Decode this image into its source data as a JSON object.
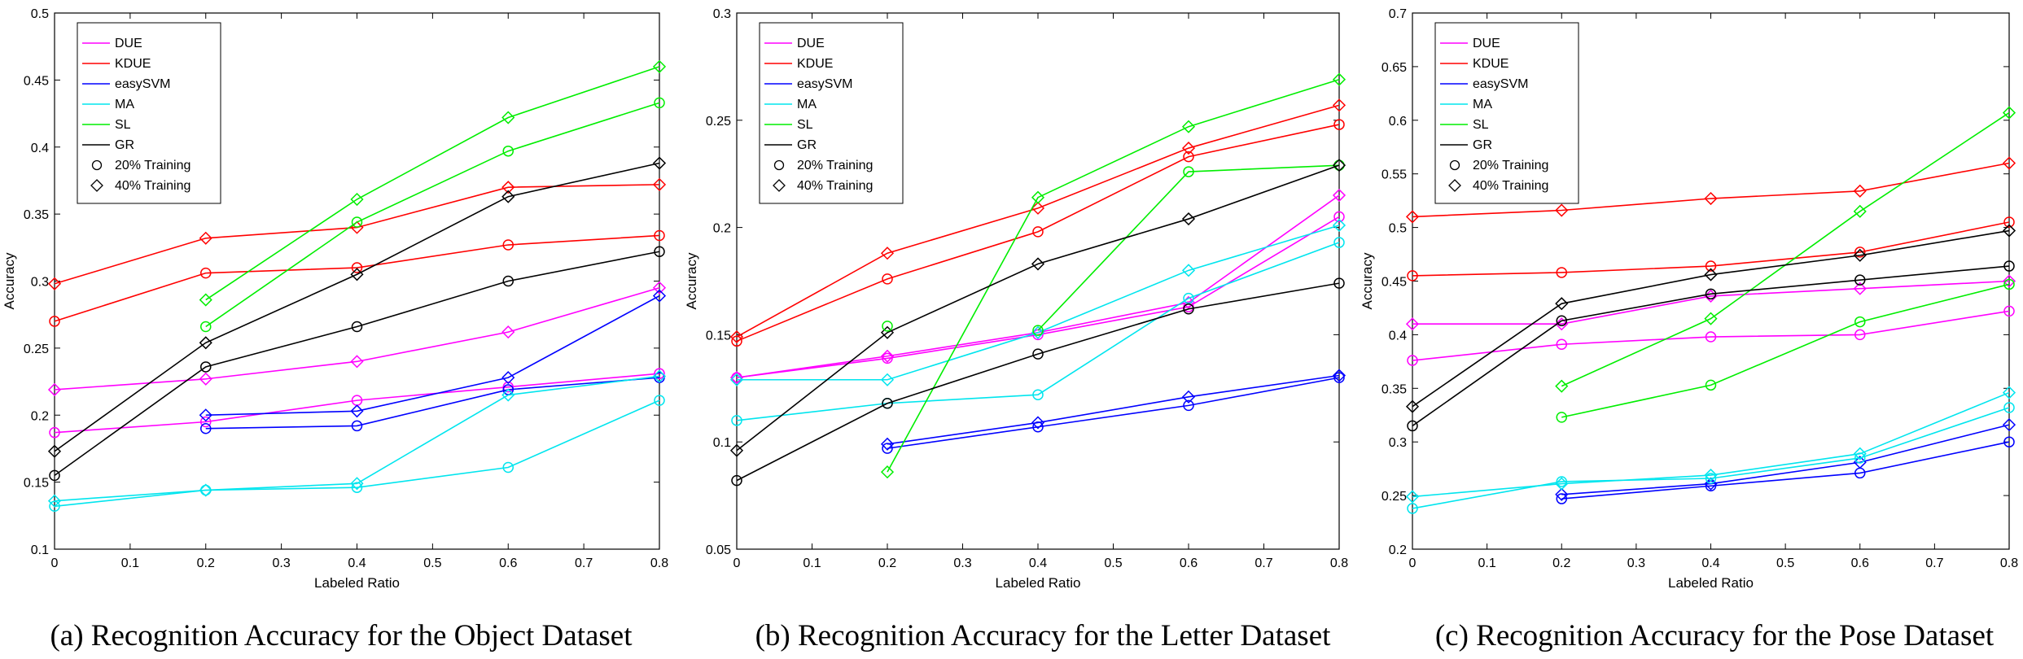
{
  "chart_data": [
    {
      "type": "line",
      "caption": "(a) Recognition Accuracy for the Object Dataset",
      "xlabel": "Labeled Ratio",
      "ylabel": "Accuracy",
      "xlim": [
        0,
        0.8
      ],
      "ylim": [
        0.1,
        0.5
      ],
      "xticks": [
        "0",
        "0.1",
        "0.2",
        "0.3",
        "0.4",
        "0.5",
        "0.6",
        "0.7",
        "0.8"
      ],
      "yticks": [
        "0.1",
        "0.15",
        "0.2",
        "0.25",
        "0.3",
        "0.35",
        "0.4",
        "0.45",
        "0.5"
      ],
      "legend_position": "top-left",
      "legend": [
        "DUE",
        "KDUE",
        "easySVM",
        "MA",
        "SL",
        "GR",
        "20% Training",
        "40% Training"
      ],
      "series": [
        {
          "name": "DUE",
          "training": "20% Training",
          "color": "#ff00ff",
          "marker": "circle",
          "x": [
            0,
            0.2,
            0.4,
            0.6,
            0.8
          ],
          "y": [
            0.187,
            0.195,
            0.211,
            0.221,
            0.231
          ]
        },
        {
          "name": "DUE",
          "training": "40% Training",
          "color": "#ff00ff",
          "marker": "diamond",
          "x": [
            0,
            0.2,
            0.4,
            0.6,
            0.8
          ],
          "y": [
            0.219,
            0.227,
            0.24,
            0.262,
            0.295
          ]
        },
        {
          "name": "KDUE",
          "training": "20% Training",
          "color": "#ff0000",
          "marker": "circle",
          "x": [
            0,
            0.2,
            0.4,
            0.6,
            0.8
          ],
          "y": [
            0.27,
            0.306,
            0.31,
            0.327,
            0.334
          ]
        },
        {
          "name": "KDUE",
          "training": "40% Training",
          "color": "#ff0000",
          "marker": "diamond",
          "x": [
            0,
            0.2,
            0.4,
            0.6,
            0.8
          ],
          "y": [
            0.298,
            0.332,
            0.34,
            0.37,
            0.372
          ]
        },
        {
          "name": "easySVM",
          "training": "20% Training",
          "color": "#0000ff",
          "marker": "circle",
          "x": [
            0.2,
            0.4,
            0.6,
            0.8
          ],
          "y": [
            0.19,
            0.192,
            0.219,
            0.228
          ]
        },
        {
          "name": "easySVM",
          "training": "40% Training",
          "color": "#0000ff",
          "marker": "diamond",
          "x": [
            0.2,
            0.4,
            0.6,
            0.8
          ],
          "y": [
            0.2,
            0.203,
            0.228,
            0.289
          ]
        },
        {
          "name": "MA",
          "training": "20% Training",
          "color": "#00e5ee",
          "marker": "circle",
          "x": [
            0,
            0.2,
            0.4,
            0.6,
            0.8
          ],
          "y": [
            0.132,
            0.144,
            0.146,
            0.161,
            0.211
          ]
        },
        {
          "name": "MA",
          "training": "40% Training",
          "color": "#00e5ee",
          "marker": "diamond",
          "x": [
            0,
            0.2,
            0.4,
            0.6,
            0.8
          ],
          "y": [
            0.136,
            0.144,
            0.149,
            0.215,
            0.229
          ]
        },
        {
          "name": "SL",
          "training": "20% Training",
          "color": "#00ee00",
          "marker": "circle",
          "x": [
            0.2,
            0.4,
            0.6,
            0.8
          ],
          "y": [
            0.266,
            0.344,
            0.397,
            0.433
          ]
        },
        {
          "name": "SL",
          "training": "40% Training",
          "color": "#00ee00",
          "marker": "diamond",
          "x": [
            0.2,
            0.4,
            0.6,
            0.8
          ],
          "y": [
            0.286,
            0.361,
            0.422,
            0.46
          ]
        },
        {
          "name": "GR",
          "training": "20% Training",
          "color": "#000000",
          "marker": "circle",
          "x": [
            0,
            0.2,
            0.4,
            0.6,
            0.8
          ],
          "y": [
            0.155,
            0.236,
            0.266,
            0.3,
            0.322
          ]
        },
        {
          "name": "GR",
          "training": "40% Training",
          "color": "#000000",
          "marker": "diamond",
          "x": [
            0,
            0.2,
            0.4,
            0.6,
            0.8
          ],
          "y": [
            0.173,
            0.254,
            0.305,
            0.363,
            0.388
          ]
        }
      ]
    },
    {
      "type": "line",
      "caption": "(b) Recognition Accuracy for the Letter Dataset",
      "xlabel": "Labeled Ratio",
      "ylabel": "Accuracy",
      "xlim": [
        0,
        0.8
      ],
      "ylim": [
        0.05,
        0.3
      ],
      "xticks": [
        "0",
        "0.1",
        "0.2",
        "0.3",
        "0.4",
        "0.5",
        "0.6",
        "0.7",
        "0.8"
      ],
      "yticks": [
        "0.05",
        "0.1",
        "0.15",
        "0.2",
        "0.25",
        "0.3"
      ],
      "legend_position": "top-left",
      "legend": [
        "DUE",
        "KDUE",
        "easySVM",
        "MA",
        "SL",
        "GR",
        "20% Training",
        "40% Training"
      ],
      "series": [
        {
          "name": "DUE",
          "training": "20% Training",
          "color": "#ff00ff",
          "marker": "circle",
          "x": [
            0,
            0.2,
            0.4,
            0.6,
            0.8
          ],
          "y": [
            0.13,
            0.139,
            0.15,
            0.163,
            0.205
          ]
        },
        {
          "name": "DUE",
          "training": "40% Training",
          "color": "#ff00ff",
          "marker": "diamond",
          "x": [
            0,
            0.2,
            0.4,
            0.6,
            0.8
          ],
          "y": [
            0.13,
            0.14,
            0.151,
            0.165,
            0.215
          ]
        },
        {
          "name": "KDUE",
          "training": "20% Training",
          "color": "#ff0000",
          "marker": "circle",
          "x": [
            0,
            0.2,
            0.4,
            0.6,
            0.8
          ],
          "y": [
            0.147,
            0.176,
            0.198,
            0.233,
            0.248
          ]
        },
        {
          "name": "KDUE",
          "training": "40% Training",
          "color": "#ff0000",
          "marker": "diamond",
          "x": [
            0,
            0.2,
            0.4,
            0.6,
            0.8
          ],
          "y": [
            0.149,
            0.188,
            0.209,
            0.237,
            0.257
          ]
        },
        {
          "name": "easySVM",
          "training": "20% Training",
          "color": "#0000ff",
          "marker": "circle",
          "x": [
            0.2,
            0.4,
            0.6,
            0.8
          ],
          "y": [
            0.097,
            0.107,
            0.117,
            0.13
          ]
        },
        {
          "name": "easySVM",
          "training": "40% Training",
          "color": "#0000ff",
          "marker": "diamond",
          "x": [
            0.2,
            0.4,
            0.6,
            0.8
          ],
          "y": [
            0.099,
            0.109,
            0.121,
            0.131
          ]
        },
        {
          "name": "MA",
          "training": "20% Training",
          "color": "#00e5ee",
          "marker": "circle",
          "x": [
            0,
            0.2,
            0.4,
            0.6,
            0.8
          ],
          "y": [
            0.11,
            0.118,
            0.122,
            0.167,
            0.193
          ]
        },
        {
          "name": "MA",
          "training": "40% Training",
          "color": "#00e5ee",
          "marker": "diamond",
          "x": [
            0,
            0.2,
            0.4,
            0.6,
            0.8
          ],
          "y": [
            0.129,
            0.129,
            0.151,
            0.18,
            0.201
          ]
        },
        {
          "name": "SL",
          "training": "20% Training",
          "color": "#00ee00",
          "marker": "circle",
          "x": [
            0.4,
            0.6,
            0.8
          ],
          "y": [
            0.152,
            0.226,
            0.229
          ]
        },
        {
          "name": "SL",
          "training": "40% Training",
          "color": "#00ee00",
          "marker": "diamond",
          "x": [
            0.2,
            0.4,
            0.6,
            0.8
          ],
          "y": [
            0.086,
            0.214,
            0.247,
            0.269
          ]
        },
        {
          "name": "GR",
          "training": "20% Training",
          "color": "#000000",
          "marker": "circle",
          "x": [
            0,
            0.2,
            0.4,
            0.6,
            0.8
          ],
          "y": [
            0.082,
            0.118,
            0.141,
            0.162,
            0.174
          ]
        },
        {
          "name": "GR",
          "training": "40% Training",
          "color": "#000000",
          "marker": "diamond",
          "x": [
            0,
            0.2,
            0.4,
            0.6,
            0.8
          ],
          "y": [
            0.096,
            0.151,
            0.183,
            0.204,
            0.229
          ]
        },
        {
          "name": "SL",
          "training": "20% Training",
          "color": "#00ee00",
          "marker": "circle",
          "x": [
            0.2
          ],
          "y": [
            0.154
          ]
        }
      ]
    },
    {
      "type": "line",
      "caption": "(c) Recognition Accuracy for the Pose Dataset",
      "xlabel": "Labeled Ratio",
      "ylabel": "Accuracy",
      "xlim": [
        0,
        0.8
      ],
      "ylim": [
        0.2,
        0.7
      ],
      "xticks": [
        "0",
        "0.1",
        "0.2",
        "0.3",
        "0.4",
        "0.5",
        "0.6",
        "0.7",
        "0.8"
      ],
      "yticks": [
        "0.2",
        "0.25",
        "0.3",
        "0.35",
        "0.4",
        "0.45",
        "0.5",
        "0.55",
        "0.6",
        "0.65",
        "0.7"
      ],
      "legend_position": "top-left",
      "legend": [
        "DUE",
        "KDUE",
        "easySVM",
        "MA",
        "SL",
        "GR",
        "20% Training",
        "40% Training"
      ],
      "series": [
        {
          "name": "DUE",
          "training": "20% Training",
          "color": "#ff00ff",
          "marker": "circle",
          "x": [
            0,
            0.2,
            0.4,
            0.6,
            0.8
          ],
          "y": [
            0.376,
            0.391,
            0.398,
            0.4,
            0.422
          ]
        },
        {
          "name": "DUE",
          "training": "40% Training",
          "color": "#ff00ff",
          "marker": "diamond",
          "x": [
            0,
            0.2,
            0.4,
            0.6,
            0.8
          ],
          "y": [
            0.41,
            0.41,
            0.436,
            0.443,
            0.45
          ]
        },
        {
          "name": "KDUE",
          "training": "20% Training",
          "color": "#ff0000",
          "marker": "circle",
          "x": [
            0,
            0.2,
            0.4,
            0.6,
            0.8
          ],
          "y": [
            0.455,
            0.458,
            0.464,
            0.477,
            0.505
          ]
        },
        {
          "name": "KDUE",
          "training": "40% Training",
          "color": "#ff0000",
          "marker": "diamond",
          "x": [
            0,
            0.2,
            0.4,
            0.6,
            0.8
          ],
          "y": [
            0.51,
            0.516,
            0.527,
            0.534,
            0.56
          ]
        },
        {
          "name": "easySVM",
          "training": "20% Training",
          "color": "#0000ff",
          "marker": "circle",
          "x": [
            0.2,
            0.4,
            0.6,
            0.8
          ],
          "y": [
            0.247,
            0.259,
            0.271,
            0.3
          ]
        },
        {
          "name": "easySVM",
          "training": "40% Training",
          "color": "#0000ff",
          "marker": "diamond",
          "x": [
            0.2,
            0.4,
            0.6,
            0.8
          ],
          "y": [
            0.251,
            0.261,
            0.281,
            0.316
          ]
        },
        {
          "name": "MA",
          "training": "20% Training",
          "color": "#00e5ee",
          "marker": "circle",
          "x": [
            0,
            0.2,
            0.4,
            0.6,
            0.8
          ],
          "y": [
            0.238,
            0.263,
            0.266,
            0.285,
            0.332
          ]
        },
        {
          "name": "MA",
          "training": "40% Training",
          "color": "#00e5ee",
          "marker": "diamond",
          "x": [
            0,
            0.2,
            0.4,
            0.6,
            0.8
          ],
          "y": [
            0.249,
            0.261,
            0.269,
            0.289,
            0.346
          ]
        },
        {
          "name": "SL",
          "training": "20% Training",
          "color": "#00ee00",
          "marker": "circle",
          "x": [
            0.2,
            0.4,
            0.6,
            0.8
          ],
          "y": [
            0.323,
            0.353,
            0.412,
            0.447
          ]
        },
        {
          "name": "SL",
          "training": "40% Training",
          "color": "#00ee00",
          "marker": "diamond",
          "x": [
            0.2,
            0.4,
            0.6,
            0.8
          ],
          "y": [
            0.352,
            0.415,
            0.515,
            0.607
          ]
        },
        {
          "name": "GR",
          "training": "20% Training",
          "color": "#000000",
          "marker": "circle",
          "x": [
            0,
            0.2,
            0.4,
            0.6,
            0.8
          ],
          "y": [
            0.315,
            0.413,
            0.438,
            0.451,
            0.464
          ]
        },
        {
          "name": "GR",
          "training": "40% Training",
          "color": "#000000",
          "marker": "diamond",
          "x": [
            0,
            0.2,
            0.4,
            0.6,
            0.8
          ],
          "y": [
            0.333,
            0.429,
            0.456,
            0.474,
            0.497
          ]
        }
      ]
    }
  ]
}
